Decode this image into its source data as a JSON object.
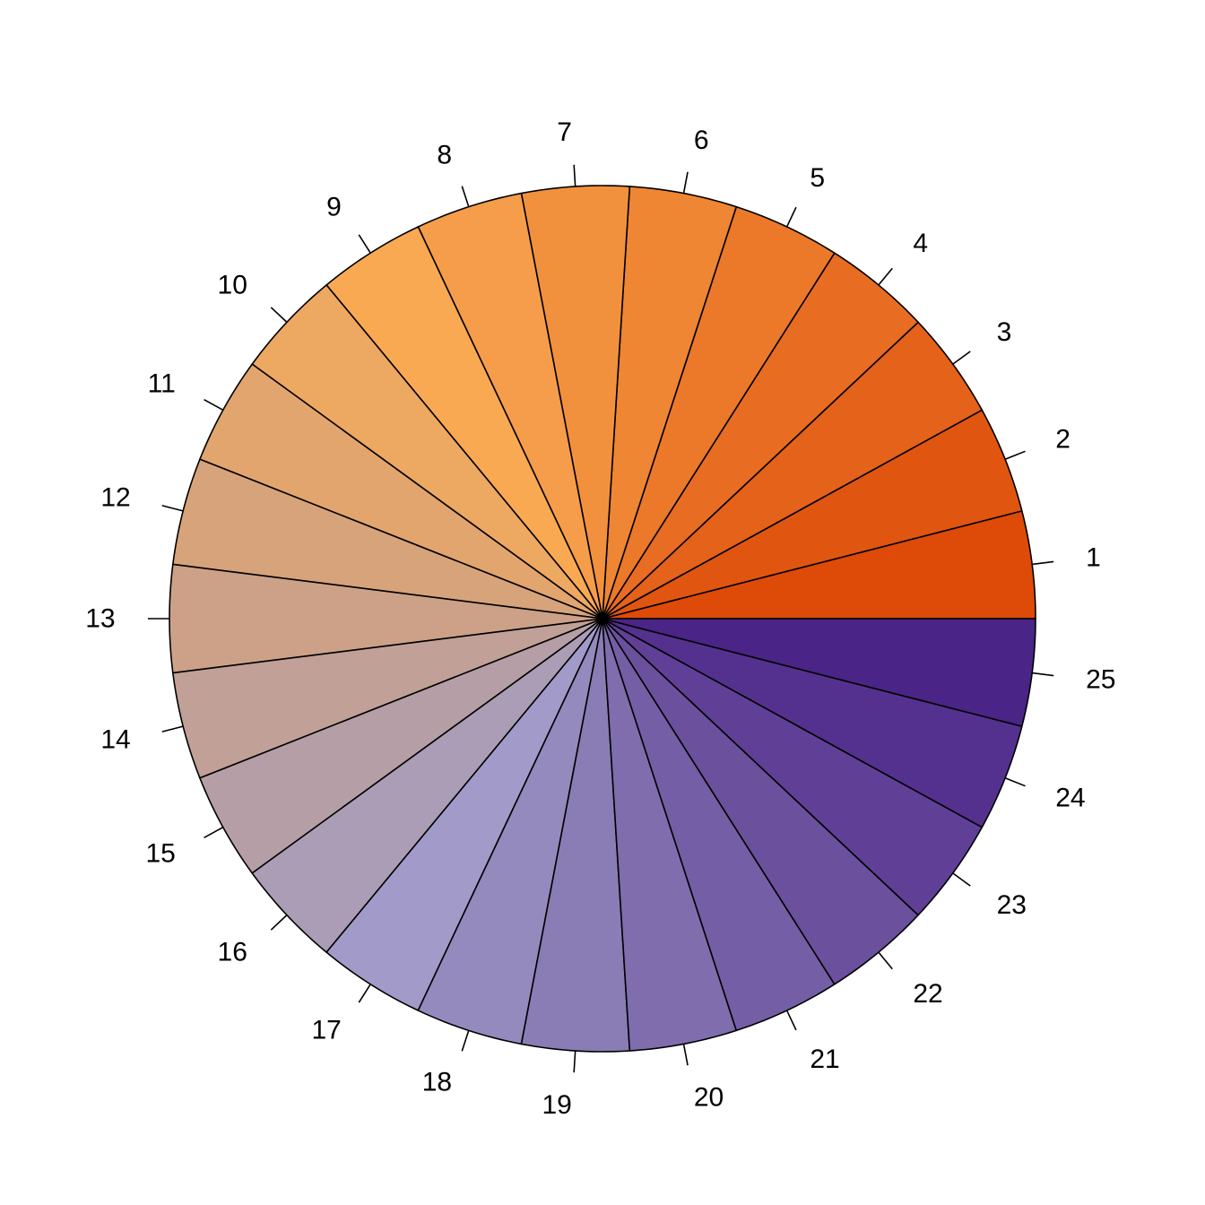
{
  "chart_data": {
    "type": "pie",
    "direction": "counterclockwise",
    "start_angle_degrees": 0,
    "border_color": "#000000",
    "background_color": "#ffffff",
    "slices": [
      {
        "label": "1",
        "value": 1,
        "color": "#DE4A08"
      },
      {
        "label": "2",
        "value": 1,
        "color": "#E05610"
      },
      {
        "label": "3",
        "value": 1,
        "color": "#E46219"
      },
      {
        "label": "4",
        "value": 1,
        "color": "#E86D22"
      },
      {
        "label": "5",
        "value": 1,
        "color": "#EB7929"
      },
      {
        "label": "6",
        "value": 1,
        "color": "#EE8633"
      },
      {
        "label": "7",
        "value": 1,
        "color": "#F2913D"
      },
      {
        "label": "8",
        "value": 1,
        "color": "#F59D4A"
      },
      {
        "label": "9",
        "value": 1,
        "color": "#FAA953"
      },
      {
        "label": "10",
        "value": 1,
        "color": "#EDA862"
      },
      {
        "label": "11",
        "value": 1,
        "color": "#E2A56D"
      },
      {
        "label": "12",
        "value": 1,
        "color": "#D7A37A"
      },
      {
        "label": "13",
        "value": 1,
        "color": "#CCA188"
      },
      {
        "label": "14",
        "value": 1,
        "color": "#C1A097"
      },
      {
        "label": "15",
        "value": 1,
        "color": "#B69EA6"
      },
      {
        "label": "16",
        "value": 1,
        "color": "#AB9DB5"
      },
      {
        "label": "17",
        "value": 1,
        "color": "#A29BCA"
      },
      {
        "label": "18",
        "value": 1,
        "color": "#958ABE"
      },
      {
        "label": "19",
        "value": 1,
        "color": "#8A7DB5"
      },
      {
        "label": "20",
        "value": 1,
        "color": "#7F6DAD"
      },
      {
        "label": "21",
        "value": 1,
        "color": "#745EA5"
      },
      {
        "label": "22",
        "value": 1,
        "color": "#6A509D"
      },
      {
        "label": "23",
        "value": 1,
        "color": "#604097"
      },
      {
        "label": "24",
        "value": 1,
        "color": "#55318F"
      },
      {
        "label": "25",
        "value": 1,
        "color": "#4A2486"
      }
    ]
  }
}
